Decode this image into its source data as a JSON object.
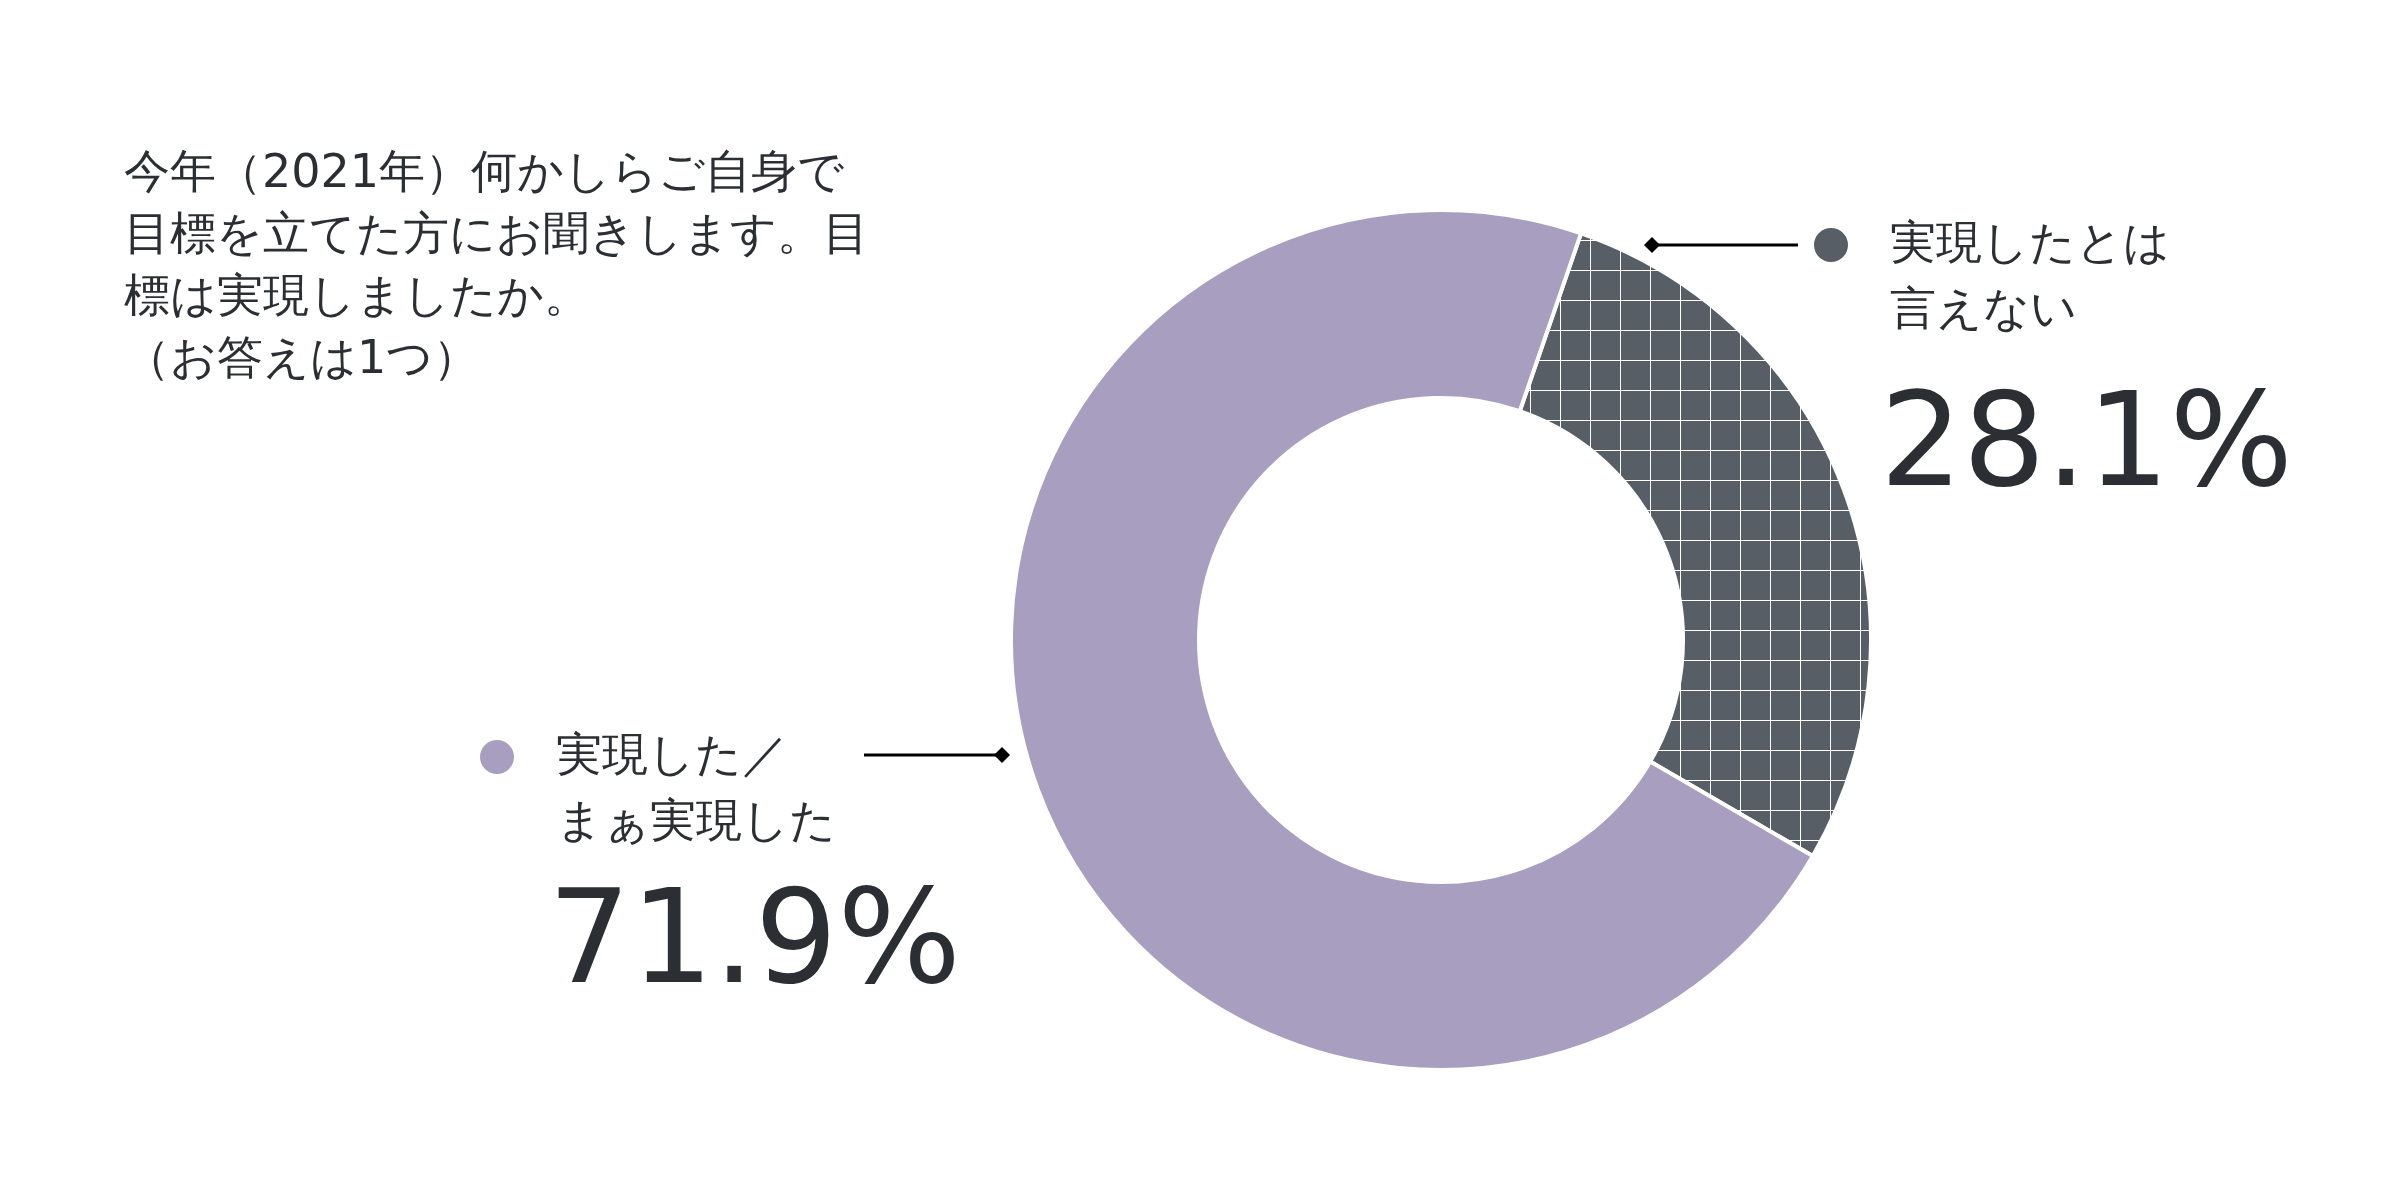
{
  "chart_data": {
    "type": "donut",
    "title": "今年（2021年）何かしらご自身で目標を立てた方にお聞きします。目標は実現しましたか。",
    "subtitle": "（お答えは1つ）",
    "categories": [
      "実現したとは言えない",
      "実現した／まぁ実現した"
    ],
    "values": [
      28.1,
      71.9
    ],
    "colors": [
      "#585e65",
      "#a89ebf"
    ],
    "value_labels": [
      "28.1%",
      "71.9%"
    ],
    "legend": "top left"
  }
}
